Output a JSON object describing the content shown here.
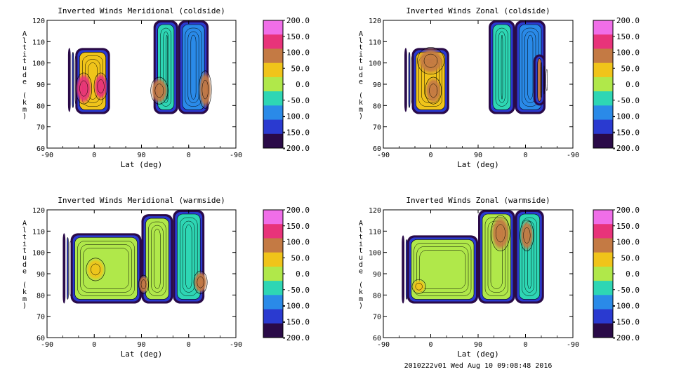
{
  "footer": "2010222v01 Wed Aug 10 09:08:48 2016",
  "colorbar": {
    "labels": [
      "200.0",
      "150.0",
      "100.0",
      "50.0",
      "0.0",
      "-50.0",
      "-100.0",
      "-150.0",
      "-200.0"
    ],
    "colors": [
      "#f06ee8",
      "#e8337a",
      "#c47a44",
      "#f0c41a",
      "#b0e84a",
      "#2ed6b4",
      "#2a8ae8",
      "#2a3ad0",
      "#2a0a48"
    ]
  },
  "axes": {
    "xticks": [
      "-90",
      "0",
      "90",
      "0",
      "-90"
    ],
    "yticks": [
      "120",
      "110",
      "100",
      "90",
      "80",
      "70",
      "60"
    ],
    "xlabel": "Lat (deg)",
    "ylabel": "Altitude (km)"
  },
  "chart_data": [
    {
      "type": "heatmap",
      "title": "Inverted Winds Meridional (coldside)",
      "xlabel": "Lat (deg)",
      "ylabel": "Altitude (km)",
      "x_ticks": [
        "-90",
        "0",
        "90",
        "0",
        "-90"
      ],
      "ylim": [
        60,
        120
      ],
      "colorbar_range": [
        -200,
        200
      ],
      "features": [
        {
          "x": [
            -50,
            -45
          ],
          "y": [
            77,
            107
          ],
          "value": -170
        },
        {
          "x": [
            -36,
            30
          ],
          "y": [
            76,
            107
          ],
          "value": 55
        },
        {
          "x": [
            -30,
            -10
          ],
          "y": [
            82,
            94
          ],
          "value": 150
        },
        {
          "x": [
            5,
            20
          ],
          "y": [
            84,
            94
          ],
          "value": 175
        },
        {
          "x": [
            113,
            160
          ],
          "y": [
            76,
            120
          ],
          "value": -40
        },
        {
          "x": [
            113,
            135
          ],
          "y": [
            82,
            92
          ],
          "value": 90
        },
        {
          "x": [
            160,
            218
          ],
          "y": [
            76,
            120
          ],
          "value": -120
        },
        {
          "x": [
            205,
            218
          ],
          "y": [
            80,
            95
          ],
          "value": 85
        }
      ]
    },
    {
      "type": "heatmap",
      "title": "Inverted Winds Zonal (coldside)",
      "xlabel": "Lat (deg)",
      "ylabel": "Altitude (km)",
      "x_ticks": [
        "-90",
        "0",
        "90",
        "0",
        "-90"
      ],
      "ylim": [
        60,
        120
      ],
      "colorbar_range": [
        -200,
        200
      ],
      "features": [
        {
          "x": [
            -50,
            -45
          ],
          "y": [
            77,
            107
          ],
          "value": -170
        },
        {
          "x": [
            -36,
            35
          ],
          "y": [
            76,
            107
          ],
          "value": 60
        },
        {
          "x": [
            -20,
            20
          ],
          "y": [
            96,
            106
          ],
          "value": 110
        },
        {
          "x": [
            -5,
            15
          ],
          "y": [
            82,
            92
          ],
          "value": 125
        },
        {
          "x": [
            110,
            160
          ],
          "y": [
            76,
            120
          ],
          "value": -50
        },
        {
          "x": [
            160,
            218
          ],
          "y": [
            76,
            120
          ],
          "value": -120
        },
        {
          "x": [
            195,
            218
          ],
          "y": [
            80,
            104
          ],
          "value": 85
        }
      ]
    },
    {
      "type": "heatmap",
      "title": "Inverted Winds Meridional (warmside)",
      "xlabel": "Lat (deg)",
      "ylabel": "Altitude (km)",
      "x_ticks": [
        "-90",
        "0",
        "90",
        "0",
        "-90"
      ],
      "ylim": [
        60,
        120
      ],
      "colorbar_range": [
        -200,
        200
      ],
      "features": [
        {
          "x": [
            -60,
            -55
          ],
          "y": [
            76,
            109
          ],
          "value": -170
        },
        {
          "x": [
            -45,
            90
          ],
          "y": [
            76,
            109
          ],
          "value": -20
        },
        {
          "x": [
            -10,
            15
          ],
          "y": [
            88,
            96
          ],
          "value": 30
        },
        {
          "x": [
            90,
            150
          ],
          "y": [
            76,
            118
          ],
          "value": -15
        },
        {
          "x": [
            90,
            98
          ],
          "y": [
            82,
            88
          ],
          "value": 100
        },
        {
          "x": [
            150,
            210
          ],
          "y": [
            76,
            120
          ],
          "value": -60
        },
        {
          "x": [
            195,
            210
          ],
          "y": [
            82,
            90
          ],
          "value": 90
        }
      ]
    },
    {
      "type": "heatmap",
      "title": "Inverted Winds Zonal (warmside)",
      "xlabel": "Lat (deg)",
      "ylabel": "Altitude (km)",
      "x_ticks": [
        "-90",
        "0",
        "90",
        "0",
        "-90"
      ],
      "ylim": [
        60,
        120
      ],
      "colorbar_range": [
        -200,
        200
      ],
      "features": [
        {
          "x": [
            -55,
            -50
          ],
          "y": [
            76,
            108
          ],
          "value": -170
        },
        {
          "x": [
            -45,
            90
          ],
          "y": [
            76,
            108
          ],
          "value": -15
        },
        {
          "x": [
            -30,
            -15
          ],
          "y": [
            82,
            86
          ],
          "value": 40
        },
        {
          "x": [
            90,
            160
          ],
          "y": [
            76,
            120
          ],
          "value": 10
        },
        {
          "x": [
            120,
            145
          ],
          "y": [
            102,
            116
          ],
          "value": 110
        },
        {
          "x": [
            160,
            215
          ],
          "y": [
            76,
            120
          ],
          "value": -60
        },
        {
          "x": [
            175,
            190
          ],
          "y": [
            102,
            114
          ],
          "value": 95
        }
      ]
    }
  ]
}
